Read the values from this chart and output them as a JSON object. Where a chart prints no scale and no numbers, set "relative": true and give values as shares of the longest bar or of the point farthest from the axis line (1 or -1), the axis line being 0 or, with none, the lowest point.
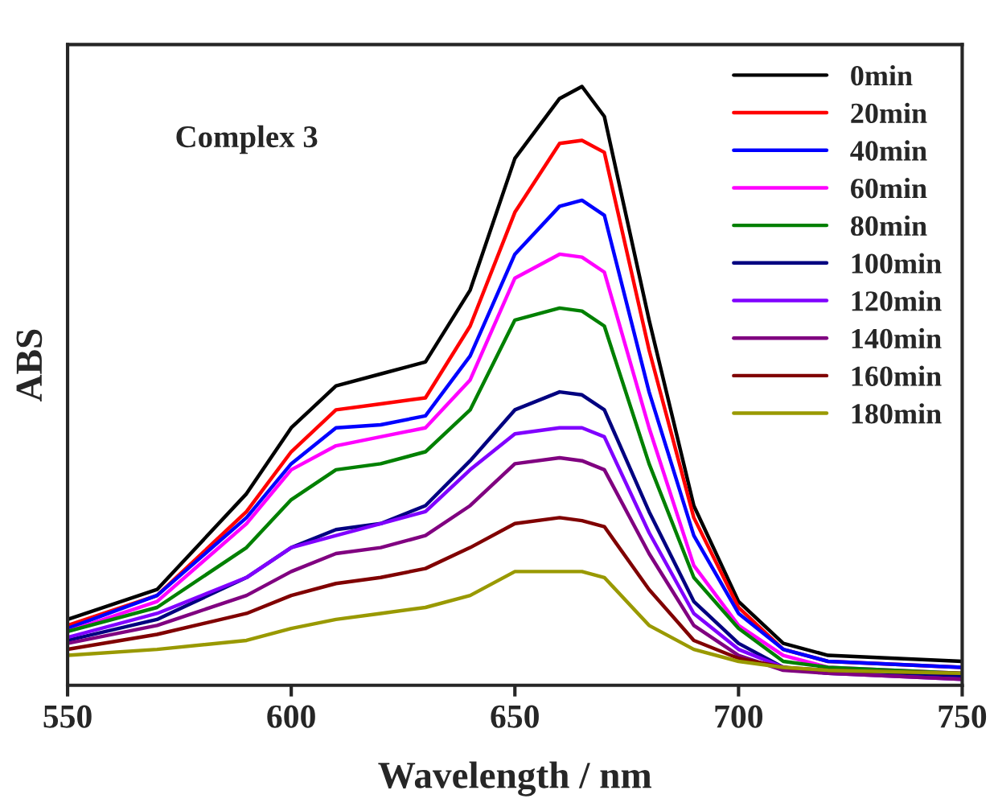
{
  "chart_data": {
    "type": "line",
    "relative": true,
    "xlabel": "Wavelength / nm",
    "ylabel": "ABS",
    "annotations": [
      "Complex 3"
    ],
    "x": [
      550,
      570,
      590,
      600,
      610,
      620,
      630,
      640,
      650,
      660,
      665,
      670,
      680,
      690,
      700,
      710,
      720,
      750
    ],
    "xlim": [
      550,
      750
    ],
    "xticks": [
      550,
      600,
      650,
      700,
      750
    ],
    "tick_labels": "x",
    "legend": "top right",
    "grid": false,
    "line_style": "solid",
    "marker": "none",
    "series": [
      {
        "name": "0min",
        "color": "#000000",
        "values": [
          0.11,
          0.16,
          0.32,
          0.43,
          0.5,
          0.52,
          0.54,
          0.66,
          0.88,
          0.98,
          1.0,
          0.95,
          0.61,
          0.3,
          0.14,
          0.07,
          0.05,
          0.04
        ]
      },
      {
        "name": "20min",
        "color": "#ff0000",
        "values": [
          0.1,
          0.15,
          0.29,
          0.39,
          0.46,
          0.47,
          0.48,
          0.6,
          0.79,
          0.905,
          0.91,
          0.89,
          0.56,
          0.28,
          0.13,
          0.06,
          0.04,
          0.03
        ]
      },
      {
        "name": "40min",
        "color": "#0000ff",
        "values": [
          0.095,
          0.15,
          0.28,
          0.37,
          0.43,
          0.435,
          0.45,
          0.55,
          0.72,
          0.8,
          0.81,
          0.785,
          0.49,
          0.25,
          0.12,
          0.06,
          0.04,
          0.03
        ]
      },
      {
        "name": "60min",
        "color": "#ff00ff",
        "values": [
          0.09,
          0.14,
          0.27,
          0.36,
          0.4,
          0.415,
          0.43,
          0.51,
          0.68,
          0.72,
          0.715,
          0.69,
          0.43,
          0.2,
          0.1,
          0.05,
          0.03,
          0.02
        ]
      },
      {
        "name": "80min",
        "color": "#008000",
        "values": [
          0.09,
          0.13,
          0.23,
          0.31,
          0.36,
          0.37,
          0.39,
          0.46,
          0.61,
          0.63,
          0.625,
          0.6,
          0.37,
          0.18,
          0.095,
          0.04,
          0.03,
          0.02
        ]
      },
      {
        "name": "100min",
        "color": "#000080",
        "values": [
          0.075,
          0.11,
          0.18,
          0.23,
          0.26,
          0.27,
          0.3,
          0.375,
          0.46,
          0.49,
          0.485,
          0.46,
          0.29,
          0.14,
          0.07,
          0.03,
          0.02,
          0.015
        ]
      },
      {
        "name": "120min",
        "color": "#8000ff",
        "values": [
          0.08,
          0.12,
          0.18,
          0.23,
          0.25,
          0.27,
          0.29,
          0.36,
          0.42,
          0.43,
          0.43,
          0.415,
          0.255,
          0.12,
          0.06,
          0.03,
          0.02,
          0.01
        ]
      },
      {
        "name": "140min",
        "color": "#800080",
        "values": [
          0.07,
          0.1,
          0.15,
          0.19,
          0.22,
          0.23,
          0.25,
          0.3,
          0.37,
          0.38,
          0.375,
          0.36,
          0.22,
          0.1,
          0.05,
          0.025,
          0.02,
          0.01
        ]
      },
      {
        "name": "160min",
        "color": "#800000",
        "values": [
          0.06,
          0.085,
          0.12,
          0.15,
          0.17,
          0.18,
          0.195,
          0.23,
          0.27,
          0.28,
          0.275,
          0.265,
          0.16,
          0.075,
          0.045,
          0.03,
          0.025,
          0.02
        ]
      },
      {
        "name": "180min",
        "color": "#999900",
        "values": [
          0.05,
          0.06,
          0.075,
          0.095,
          0.11,
          0.12,
          0.13,
          0.15,
          0.19,
          0.19,
          0.19,
          0.18,
          0.1,
          0.06,
          0.04,
          0.03,
          0.025,
          0.02
        ]
      }
    ]
  }
}
